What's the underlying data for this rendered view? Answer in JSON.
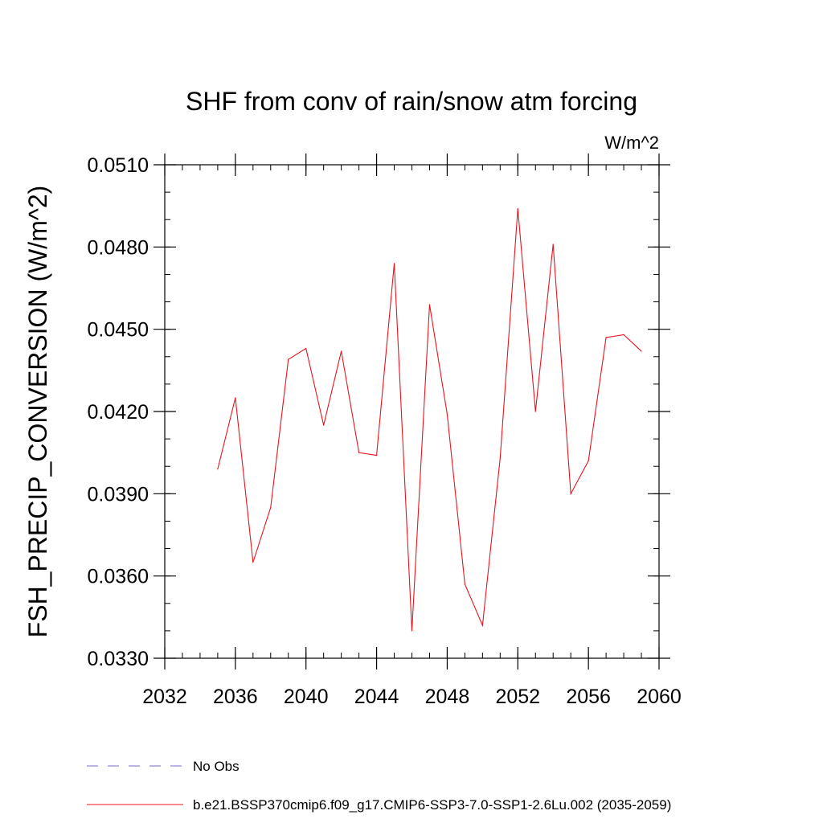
{
  "chart_data": {
    "type": "line",
    "title": "SHF from conv of rain/snow atm forcing",
    "units_label": "W/m^2",
    "ylabel": "FSH_PRECIP_CONVERSION  (W/m^2)",
    "xlabel": "",
    "xlim": [
      2032,
      2060
    ],
    "ylim": [
      0.033,
      0.051
    ],
    "x_ticks": [
      2032,
      2036,
      2040,
      2044,
      2048,
      2052,
      2056,
      2060
    ],
    "x_tick_labels": [
      "2032",
      "2036",
      "2040",
      "2044",
      "2048",
      "2052",
      "2056",
      "2060"
    ],
    "y_ticks": [
      0.033,
      0.036,
      0.039,
      0.042,
      0.045,
      0.048,
      0.051
    ],
    "y_tick_labels": [
      "0.0330",
      "0.0360",
      "0.0390",
      "0.0420",
      "0.0450",
      "0.0480",
      "0.0510"
    ],
    "y_minor_step": 0.001,
    "x_minor_step": 1,
    "grid": false,
    "legend_position": "bottom",
    "legend": [
      {
        "label": "No Obs",
        "style": "dashed",
        "color": "#7b68c8"
      },
      {
        "label": "b.e21.BSSP370cmip6.f09_g17.CMIP6-SSP3-7.0-SSP1-2.6Lu.002 (2035-2059)",
        "style": "solid",
        "color": "#e8141e"
      }
    ],
    "series": [
      {
        "name": "b.e21.BSSP370cmip6.f09_g17.CMIP6-SSP3-7.0-SSP1-2.6Lu.002 (2035-2059)",
        "color": "#e8141e",
        "x": [
          2035,
          2036,
          2037,
          2038,
          2039,
          2040,
          2041,
          2042,
          2043,
          2044,
          2045,
          2046,
          2047,
          2048,
          2049,
          2050,
          2051,
          2052,
          2053,
          2054,
          2055,
          2056,
          2057,
          2058,
          2059
        ],
        "values": [
          0.0399,
          0.0425,
          0.0365,
          0.0385,
          0.0439,
          0.0443,
          0.0415,
          0.0442,
          0.0405,
          0.0404,
          0.0474,
          0.034,
          0.0459,
          0.0419,
          0.0357,
          0.0342,
          0.0403,
          0.0494,
          0.042,
          0.0481,
          0.039,
          0.0402,
          0.0447,
          0.0448,
          0.0442
        ]
      }
    ]
  }
}
